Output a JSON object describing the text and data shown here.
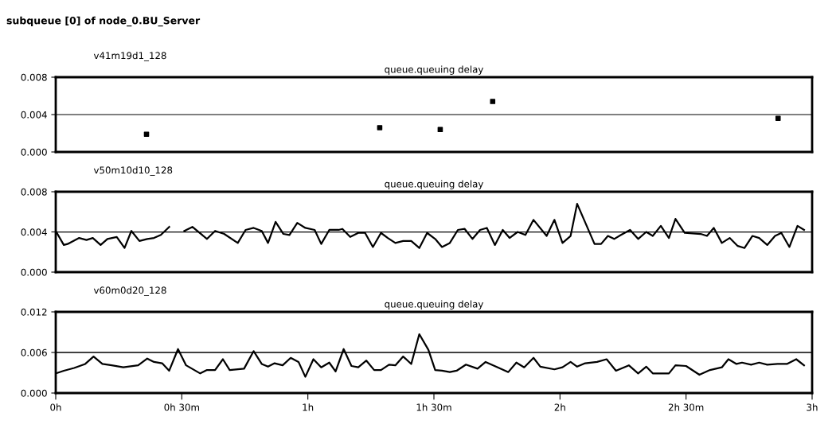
{
  "chart_data": [
    {
      "type": "scatter",
      "title": "queue.queuing delay",
      "subtitle": "v41m19d1_128",
      "annotations": [
        "subqueue [0] of node_0.BU_Server"
      ],
      "marker": "square",
      "grid": "y",
      "tick_labels": "y",
      "series": [
        {
          "color": "#000000",
          "x": [
            0.36,
            1.285,
            1.525,
            1.733,
            2.865
          ],
          "values": [
            0.0019,
            0.0026,
            0.0024,
            0.0054,
            0.0036
          ]
        }
      ],
      "xlim": [
        0,
        3
      ],
      "ylim": [
        0,
        0.008
      ],
      "yticks": [
        {
          "value": 0,
          "label": "0.000"
        },
        {
          "value": 0.004,
          "label": "0.004"
        },
        {
          "value": 0.008,
          "label": "0.008"
        }
      ]
    },
    {
      "type": "line",
      "title": "queue.queuing delay",
      "subtitle": "v50m10d10_128",
      "marker": "none",
      "line_style": "solid",
      "grid": "y",
      "tick_labels": "y",
      "series": [
        {
          "color": "#000000",
          "x": [
            0,
            0.032,
            0.047,
            0.093,
            0.122,
            0.147,
            0.178,
            0.205,
            0.242,
            0.273,
            0.3,
            0.332,
            0.363,
            0.39,
            0.417,
            0.45,
            0.475,
            0.51,
            0.542,
            0.6,
            0.632,
            0.668,
            0.722,
            0.753,
            0.785,
            0.817,
            0.842,
            0.872,
            0.903,
            0.927,
            0.958,
            0.99,
            1.027,
            1.053,
            1.085,
            1.122,
            1.137,
            1.168,
            1.2,
            1.227,
            1.258,
            1.29,
            1.317,
            1.347,
            1.378,
            1.41,
            1.442,
            1.473,
            1.505,
            1.532,
            1.563,
            1.595,
            1.622,
            1.653,
            1.683,
            1.71,
            1.742,
            1.773,
            1.8,
            1.832,
            1.863,
            1.895,
            1.947,
            1.978,
            2.01,
            2.042,
            2.068,
            2.137,
            2.163,
            2.19,
            2.215,
            2.242,
            2.278,
            2.31,
            2.342,
            2.368,
            2.4,
            2.432,
            2.458,
            2.495,
            2.558,
            2.583,
            2.61,
            2.642,
            2.673,
            2.705,
            2.732,
            2.763,
            2.79,
            2.822,
            2.853,
            2.878,
            2.91,
            2.942,
            2.968
          ],
          "values": [
            0.0041,
            0.0027,
            0.0028,
            0.0034,
            0.0032,
            0.0034,
            0.0027,
            0.0033,
            0.0035,
            0.0024,
            0.0041,
            0.0031,
            0.0033,
            0.0034,
            0.0037,
            0.0045,
            null,
            0.0041,
            0.0045,
            0.0033,
            0.0041,
            0.0038,
            0.0029,
            0.0042,
            0.0044,
            0.0041,
            0.0029,
            0.005,
            0.0038,
            0.0037,
            0.0049,
            0.0044,
            0.0042,
            0.0028,
            0.0042,
            0.0042,
            0.0043,
            0.0035,
            0.0039,
            0.0039,
            0.0025,
            0.0039,
            0.0034,
            0.0029,
            0.0031,
            0.0031,
            0.0024,
            0.0039,
            0.0033,
            0.0025,
            0.0029,
            0.0042,
            0.0043,
            0.0033,
            0.0042,
            0.0044,
            0.0027,
            0.0042,
            0.0034,
            0.004,
            0.0037,
            0.0052,
            0.0036,
            0.0052,
            0.0029,
            0.0036,
            0.0068,
            0.0028,
            0.0028,
            0.0036,
            0.0033,
            0.0037,
            0.0042,
            0.0033,
            0.004,
            0.0036,
            0.0046,
            0.0034,
            0.0053,
            0.0039,
            0.0038,
            0.0036,
            0.0044,
            0.0029,
            0.0034,
            0.0026,
            0.0024,
            0.0036,
            0.0034,
            0.0027,
            0.0036,
            0.0039,
            0.0025,
            0.0046,
            0.0042
          ]
        }
      ],
      "xlim": [
        0,
        3
      ],
      "ylim": [
        0,
        0.008
      ],
      "yticks": [
        {
          "value": 0,
          "label": "0.000"
        },
        {
          "value": 0.004,
          "label": "0.004"
        },
        {
          "value": 0.008,
          "label": "0.008"
        }
      ]
    },
    {
      "type": "line",
      "title": "queue.queuing delay",
      "subtitle": "v60m0d20_128",
      "marker": "none",
      "line_style": "solid",
      "grid": "y",
      "series": [
        {
          "color": "#000000",
          "x": [
            0,
            0.032,
            0.073,
            0.117,
            0.15,
            0.185,
            0.222,
            0.268,
            0.327,
            0.363,
            0.39,
            0.422,
            0.45,
            0.485,
            0.517,
            0.573,
            0.6,
            0.632,
            0.663,
            0.69,
            0.747,
            0.785,
            0.817,
            0.842,
            0.868,
            0.9,
            0.932,
            0.963,
            0.99,
            1.022,
            1.053,
            1.085,
            1.11,
            1.142,
            1.173,
            1.2,
            1.232,
            1.263,
            1.29,
            1.322,
            1.347,
            1.378,
            1.41,
            1.442,
            1.478,
            1.505,
            1.532,
            1.563,
            1.59,
            1.627,
            1.673,
            1.705,
            1.753,
            1.795,
            1.827,
            1.858,
            1.895,
            1.922,
            1.978,
            2.01,
            2.042,
            2.068,
            2.1,
            2.147,
            2.185,
            2.222,
            2.273,
            2.31,
            2.342,
            2.368,
            2.432,
            2.458,
            2.5,
            2.553,
            2.595,
            2.642,
            2.668,
            2.7,
            2.722,
            2.758,
            2.79,
            2.822,
            2.863,
            2.9,
            2.937,
            2.968
          ],
          "values": [
            0.0029,
            0.0033,
            0.0037,
            0.0043,
            0.0054,
            0.0043,
            0.0041,
            0.0038,
            0.0041,
            0.0051,
            0.0046,
            0.0044,
            0.0033,
            0.0065,
            0.0041,
            0.0029,
            0.0034,
            0.0034,
            0.005,
            0.0034,
            0.0036,
            0.0062,
            0.0043,
            0.0039,
            0.0044,
            0.0041,
            0.0052,
            0.0046,
            0.0024,
            0.005,
            0.0038,
            0.0045,
            0.0032,
            0.0065,
            0.004,
            0.0038,
            0.0048,
            0.0034,
            0.0034,
            0.0042,
            0.0041,
            0.0054,
            0.0043,
            0.0087,
            0.0064,
            0.0034,
            0.0033,
            0.0031,
            0.0033,
            0.0042,
            0.0036,
            0.0046,
            0.0038,
            0.0031,
            0.0045,
            0.0038,
            0.0052,
            0.0039,
            0.0035,
            0.0038,
            0.0046,
            0.0039,
            0.0044,
            0.0046,
            0.005,
            0.0033,
            0.0041,
            0.0029,
            0.0039,
            0.0029,
            0.0029,
            0.0041,
            0.004,
            0.0027,
            0.0034,
            0.0038,
            0.005,
            0.0043,
            0.0045,
            0.0042,
            0.0045,
            0.0042,
            0.0043,
            0.0043,
            0.005,
            0.0041
          ]
        }
      ],
      "xlim": [
        0,
        3
      ],
      "xticks": [
        {
          "value": 0,
          "label": "0h"
        },
        {
          "value": 0.5,
          "label": "0h 30m"
        },
        {
          "value": 1,
          "label": "1h"
        },
        {
          "value": 1.5,
          "label": "1h 30m"
        },
        {
          "value": 2,
          "label": "2h"
        },
        {
          "value": 2.5,
          "label": "2h 30m"
        },
        {
          "value": 3,
          "label": "3h"
        }
      ],
      "ylim": [
        0,
        0.012
      ],
      "yticks": [
        {
          "value": 0,
          "label": "0.000"
        },
        {
          "value": 0.006,
          "label": "0.006"
        },
        {
          "value": 0.012,
          "label": "0.012"
        }
      ]
    }
  ]
}
